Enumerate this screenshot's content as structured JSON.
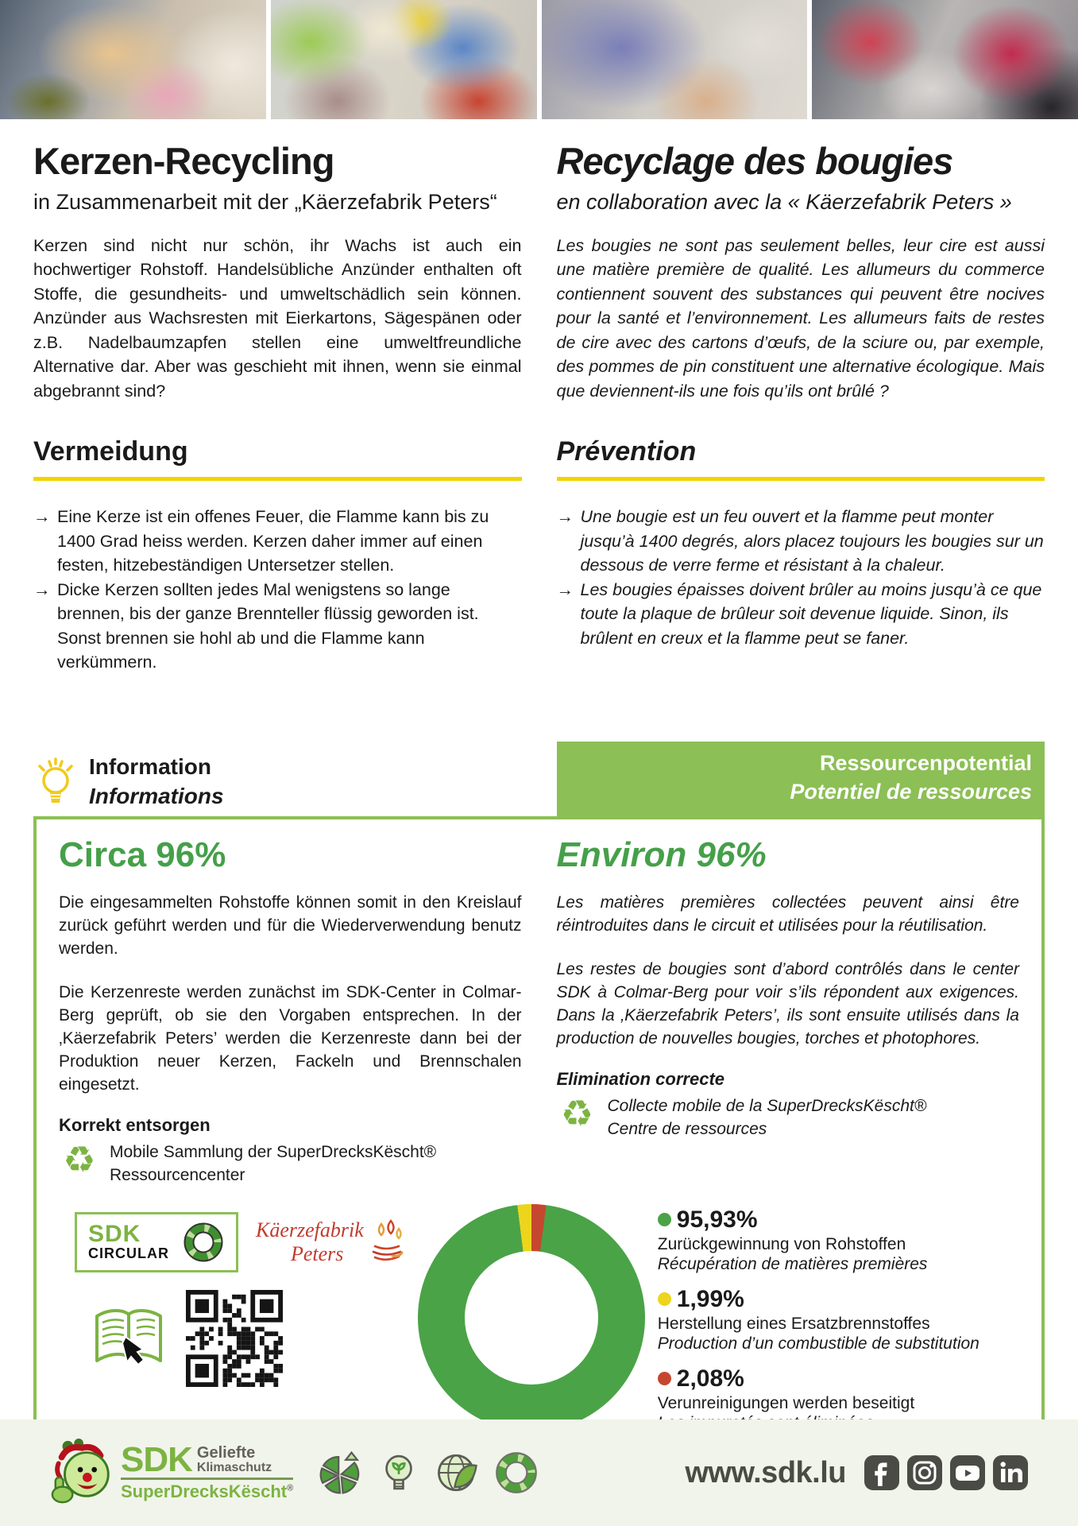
{
  "german": {
    "title": "Kerzen-Recycling",
    "subtitle": "in Zusammenarbeit mit der „Käerzefabrik Peters“",
    "intro": "Kerzen sind nicht nur schön, ihr Wachs ist auch ein hochwertiger Rohstoff. Handelsübliche Anzünder enthalten oft Stoffe, die gesundheits- und umweltschädlich sein können. Anzünder aus Wachsresten mit Eierkartons, Sägespänen oder z.B. Nadelbaumzapfen stellen eine umweltfreundliche Alternative dar. Aber was geschieht mit ihnen, wenn sie einmal abgebrannt sind?",
    "section_heading": "Vermeidung",
    "bullet_marker": "→",
    "bullets": [
      "Eine Kerze ist ein offenes Feuer, die Flamme kann bis zu 1400 Grad heiss werden. Kerzen daher immer auf einen festen, hitzebeständigen Untersetzer stellen.",
      "Dicke Kerzen sollten jedes Mal wenigstens so lange brennen, bis der ganze Brennteller flüssig geworden ist. Sonst brennen sie hohl ab und die Flamme kann verkümmern."
    ]
  },
  "french": {
    "title": "Recyclage des bougies",
    "subtitle": "en collaboration avec la « Käerzefabrik Peters »",
    "intro": "Les bougies ne sont pas seulement belles, leur cire est aussi une matière première de qualité. Les allumeurs du commerce contiennent souvent des substances qui peuvent être nocives pour la santé et l’environnement. Les allumeurs faits de restes de cire avec des cartons d’œufs, de la sciure ou, par exemple, des pommes de pin constituent une alternative écologique. Mais que deviennent-ils une fois qu’ils ont brûlé ?",
    "section_heading": "Prévention",
    "bullet_marker": "→",
    "bullets": [
      "Une bougie est un feu ouvert et la flamme peut monter jusqu’à 1400 degrés, alors placez toujours les bougies sur un dessous de verre ferme et résistant à la chaleur.",
      "Les bougies épaisses doivent brûler au moins jusqu’à ce que toute la plaque de brûleur soit devenue liquide. Sinon, ils brûlent en creux et la flamme peut se faner."
    ]
  },
  "info_heading": {
    "de": "Information",
    "fr": "Informations"
  },
  "resource_band": {
    "de": "Ressourcenpotential",
    "fr": "Potentiel de ressources"
  },
  "resource_box": {
    "de": {
      "headline": "Circa 96%",
      "p1": "Die eingesammelten Rohstoffe können somit in den Kreislauf zurück geführt werden und für die Wiederverwendung benutz werden.",
      "p2": "Die Kerzenreste werden zunächst im SDK-Center in Colmar-Berg geprüft, ob sie den Vorgaben entsprechen. In der ‚Käerzefabrik Peters’ werden die Kerzenreste dann bei der Produktion neuer Kerzen, Fackeln und Brennschalen eingesetzt.",
      "dispose_heading": "Korrekt entsorgen",
      "dispose_line1": "Mobile Sammlung der SuperDrecksKëscht®",
      "dispose_line2": "Ressourcencenter"
    },
    "fr": {
      "headline": "Environ 96%",
      "p1": "Les matières premières collectées peuvent ainsi être réintroduites dans le circuit et utilisées pour la réutilisation.",
      "p2": "Les restes de bougies sont d’abord contrôlés dans le center SDK à Colmar-Berg pour voir s’ils répondent aux exigences. Dans la ‚Käerzefabrik Peters’, ils sont ensuite utilisés dans la production de nouvelles bougies, torches et photophores.",
      "dispose_heading": "Elimination correcte",
      "dispose_line1": "Collecte mobile de la SuperDrecksKëscht®",
      "dispose_line2": "Centre de ressources"
    }
  },
  "logos": {
    "sdk_circular": {
      "line1": "SDK",
      "line2": "CIRCULAR"
    },
    "kaerzefabrik": {
      "line1": "Käerzefabrik",
      "line2": "Peters"
    }
  },
  "chart_data": {
    "type": "pie",
    "donut": true,
    "unit": "%",
    "slices": [
      {
        "display": "95,93%",
        "value": 95.93,
        "color": "#4aa347",
        "label_de": "Zurückgewinnung von Rohstoffen",
        "label_fr": "Récupération de matières premières"
      },
      {
        "display": "1,99%",
        "value": 1.99,
        "color": "#ecd51c",
        "label_de": "Herstellung eines Ersatzbrennstoffes",
        "label_fr": "Production d’un combustible de substitution"
      },
      {
        "display": "2,08%",
        "value": 2.08,
        "color": "#c6472f",
        "label_de": "Verunreinigungen werden beseitigt",
        "label_fr": "Les impuretés sont éliminées"
      }
    ],
    "draw_order": [
      2,
      0,
      1
    ],
    "legend_position": "right"
  },
  "footer": {
    "sdk_logo": {
      "sdk": "SDK",
      "tagline1": "Geliefte",
      "tagline2": "Klimaschutz",
      "brand": "SuperDrecksKëscht",
      "registered": "®"
    },
    "website": "www.sdk.lu",
    "social": [
      "Facebook",
      "Instagram",
      "YouTube",
      "LinkedIn"
    ]
  },
  "colors": {
    "brand_green": "#7cb342",
    "band_green": "#8cbf55",
    "heading_green": "#45a049",
    "rule_yellow": "#f0d400",
    "footer_bg": "#f1f4ea"
  }
}
